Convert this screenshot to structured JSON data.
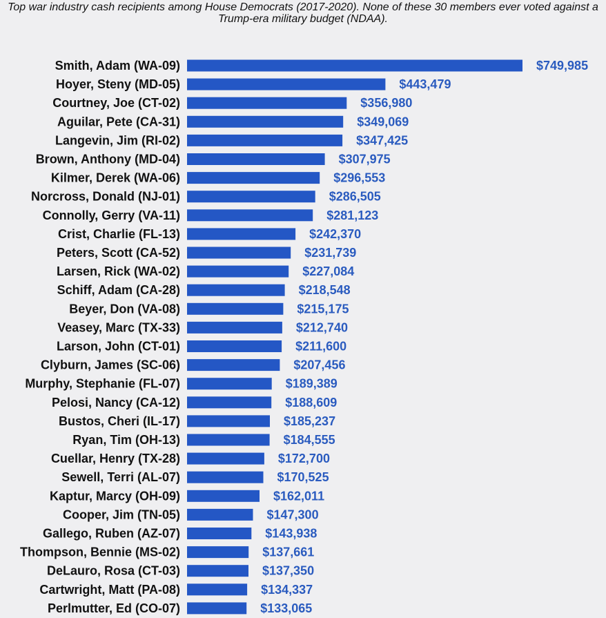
{
  "chart_data": {
    "type": "bar",
    "orientation": "horizontal",
    "title": "Top war industry cash recipients among House Democrats (2017-2020). None of these 30 members ever voted against a Trump-era military budget (NDAA).",
    "xlabel": "",
    "ylabel": "",
    "xlim": [
      0,
      749985
    ],
    "grid": false,
    "legend": "none",
    "bar_color": "#2457c5",
    "label_color": "#2a5bbf",
    "categories": [
      "Smith, Adam (WA-09)",
      "Hoyer, Steny (MD-05)",
      "Courtney, Joe (CT-02)",
      "Aguilar, Pete (CA-31)",
      "Langevin, Jim (RI-02)",
      "Brown, Anthony (MD-04)",
      "Kilmer, Derek (WA-06)",
      "Norcross, Donald (NJ-01)",
      "Connolly, Gerry (VA-11)",
      "Crist, Charlie (FL-13)",
      "Peters, Scott (CA-52)",
      "Larsen, Rick (WA-02)",
      "Schiff, Adam (CA-28)",
      "Beyer, Don (VA-08)",
      "Veasey, Marc (TX-33)",
      "Larson, John (CT-01)",
      "Clyburn, James (SC-06)",
      "Murphy, Stephanie (FL-07)",
      "Pelosi, Nancy (CA-12)",
      "Bustos, Cheri (IL-17)",
      "Ryan, Tim (OH-13)",
      "Cuellar, Henry (TX-28)",
      "Sewell, Terri (AL-07)",
      "Kaptur, Marcy (OH-09)",
      "Cooper, Jim (TN-05)",
      "Gallego, Ruben (AZ-07)",
      "Thompson, Bennie (MS-02)",
      "DeLauro, Rosa (CT-03)",
      "Cartwright, Matt (PA-08)",
      "Perlmutter, Ed (CO-07)"
    ],
    "values": [
      749985,
      443479,
      356980,
      349069,
      347425,
      307975,
      296553,
      286505,
      281123,
      242370,
      231739,
      227084,
      218548,
      215175,
      212740,
      211600,
      207456,
      189389,
      188609,
      185237,
      184555,
      172700,
      170525,
      162011,
      147300,
      143938,
      137661,
      137350,
      134337,
      133065
    ],
    "value_labels": [
      "$749,985",
      "$443,479",
      "$356,980",
      "$349,069",
      "$347,425",
      "$307,975",
      "$296,553",
      "$286,505",
      "$281,123",
      "$242,370",
      "$231,739",
      "$227,084",
      "$218,548",
      "$215,175",
      "$212,740",
      "$211,600",
      "$207,456",
      "$189,389",
      "$188,609",
      "$185,237",
      "$184,555",
      "$172,700",
      "$170,525",
      "$162,011",
      "$147,300",
      "$143,938",
      "$137,661",
      "$137,350",
      "$134,337",
      "$133,065"
    ]
  }
}
